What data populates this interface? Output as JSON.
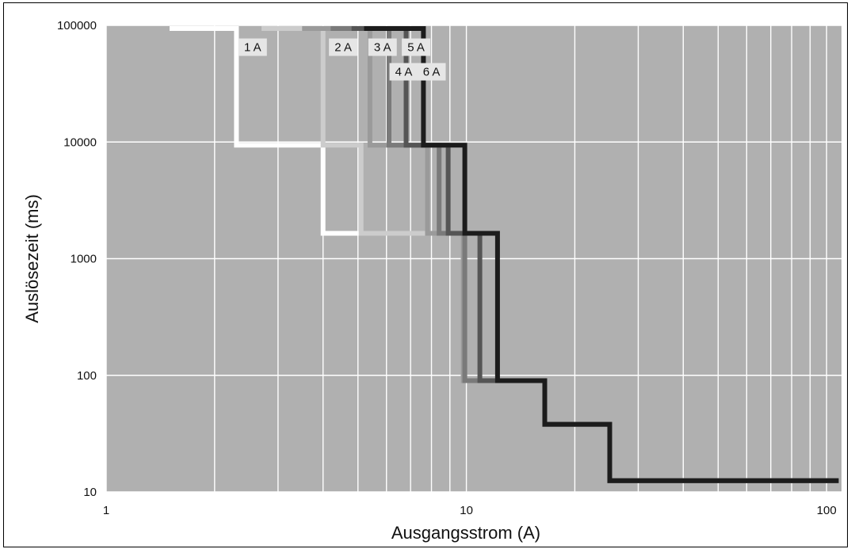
{
  "chart_data": {
    "type": "line",
    "title": "",
    "xlabel": "Ausgangsstrom (A)",
    "ylabel": "Auslösezeit (ms)",
    "x_scale": "log",
    "y_scale": "log",
    "xlim": [
      1,
      110
    ],
    "ylim": [
      10,
      100000
    ],
    "x_tick_labels": [
      {
        "value": 1,
        "label": "1"
      },
      {
        "value": 10,
        "label": "10"
      },
      {
        "value": 100,
        "label": "100"
      }
    ],
    "y_tick_labels": [
      {
        "value": 100000,
        "label": "100000"
      },
      {
        "value": 10000,
        "label": "10000"
      },
      {
        "value": 1000,
        "label": "1000"
      },
      {
        "value": 100,
        "label": "100"
      },
      {
        "value": 10,
        "label": "10"
      }
    ],
    "grid": true,
    "background_color": "#b0b0b0",
    "grid_color": "#ffffff",
    "series": [
      {
        "name": "1 A",
        "color": "#ffffff",
        "x": [
          1.5,
          2.3,
          2.3,
          4.0,
          4.0,
          5.0,
          5.0,
          6.8,
          6.8,
          9.8,
          9.8,
          12.2,
          12.2,
          16.5,
          16.5,
          25,
          25,
          108
        ],
        "y": [
          94000,
          94000,
          9400,
          9400,
          1650,
          1650,
          1650,
          1650,
          1650,
          1650,
          90,
          90,
          90,
          90,
          38,
          38,
          12.5,
          12.5
        ]
      },
      {
        "name": "2 A",
        "color": "#cccccc",
        "x": [
          2.7,
          4.0,
          4.0,
          5.1,
          5.1,
          6.8,
          6.8,
          9.8,
          9.8,
          12.2,
          12.2,
          16.5,
          16.5,
          25,
          25,
          108
        ],
        "y": [
          94000,
          94000,
          9400,
          9400,
          1650,
          1650,
          1650,
          1650,
          90,
          90,
          90,
          90,
          38,
          38,
          12.5,
          12.5
        ]
      },
      {
        "name": "3 A",
        "color": "#9a9a9a",
        "x": [
          3.5,
          5.4,
          5.4,
          7.8,
          7.8,
          9.8,
          9.8,
          12.2,
          12.2,
          16.5,
          16.5,
          25,
          25,
          108
        ],
        "y": [
          94000,
          94000,
          9400,
          9400,
          1650,
          1650,
          90,
          90,
          90,
          90,
          38,
          38,
          12.5,
          12.5
        ]
      },
      {
        "name": "4 A",
        "color": "#7a7a7a",
        "x": [
          4.2,
          6.1,
          6.1,
          8.4,
          8.4,
          9.9,
          9.9,
          12.2,
          12.2,
          16.5,
          16.5,
          25,
          25,
          108
        ],
        "y": [
          94000,
          94000,
          9400,
          9400,
          1650,
          1650,
          90,
          90,
          90,
          90,
          38,
          38,
          12.5,
          12.5
        ]
      },
      {
        "name": "5 A",
        "color": "#555555",
        "x": [
          4.8,
          6.8,
          6.8,
          8.9,
          8.9,
          10.9,
          10.9,
          12.2,
          12.2,
          16.5,
          16.5,
          25,
          25,
          108
        ],
        "y": [
          94000,
          94000,
          9400,
          9400,
          1650,
          1650,
          90,
          90,
          90,
          90,
          38,
          38,
          12.5,
          12.5
        ]
      },
      {
        "name": "6 A",
        "color": "#1c1c1c",
        "x": [
          5.2,
          7.6,
          7.6,
          9.9,
          9.9,
          12.2,
          12.2,
          16.5,
          16.5,
          25,
          25,
          108
        ],
        "y": [
          94000,
          94000,
          9400,
          9400,
          1650,
          1650,
          90,
          90,
          38,
          38,
          12.5,
          12.5
        ]
      }
    ],
    "annotations": [
      {
        "text": "1 A",
        "x": 2.55,
        "y": 65000
      },
      {
        "text": "2 A",
        "x": 4.55,
        "y": 65000
      },
      {
        "text": "3 A",
        "x": 5.85,
        "y": 65000
      },
      {
        "text": "5 A",
        "x": 7.25,
        "y": 65000
      },
      {
        "text": "4 A",
        "x": 6.7,
        "y": 40000
      },
      {
        "text": "6 A",
        "x": 8.0,
        "y": 40000
      }
    ]
  }
}
